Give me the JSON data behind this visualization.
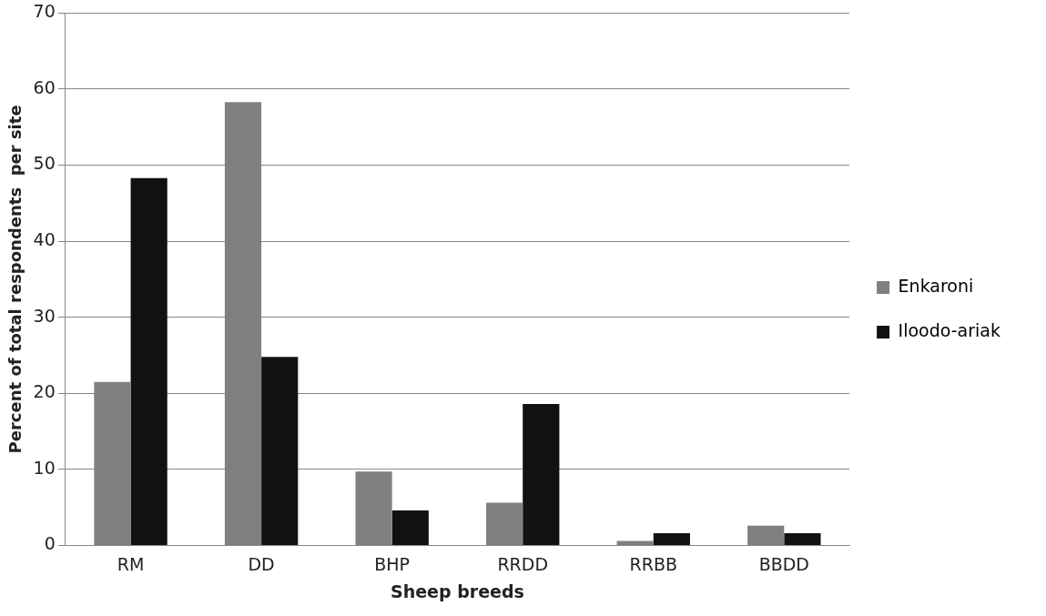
{
  "chart_data": {
    "type": "bar",
    "xlabel": "Sheep breeds",
    "ylabel": "Percent of total respondents  per site",
    "categories": [
      "RM",
      "DD",
      "BHP",
      "RRDD",
      "RRBB",
      "BBDD"
    ],
    "series": [
      {
        "name": "Enkaroni",
        "color": "#808080",
        "values": [
          21.5,
          58.3,
          9.7,
          5.6,
          0.6,
          2.6
        ]
      },
      {
        "name": "Iloodo-ariak",
        "color": "#111111",
        "values": [
          48.3,
          24.8,
          4.6,
          18.6,
          1.6,
          1.6
        ]
      }
    ],
    "ylim": [
      0,
      70
    ],
    "yticks": [
      0,
      10,
      20,
      30,
      40,
      50,
      60,
      70
    ],
    "grid": "y",
    "legend": "right"
  }
}
